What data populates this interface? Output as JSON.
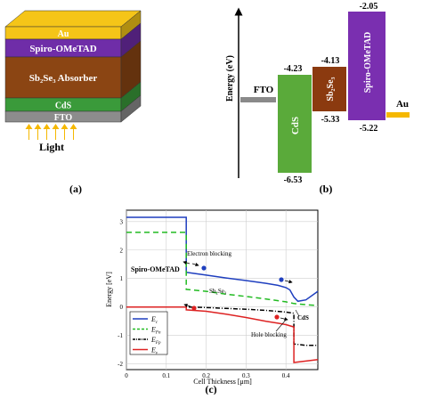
{
  "panel_a": {
    "caption": "(a)",
    "layers": [
      {
        "label": "Au",
        "color": "#f5c518"
      },
      {
        "label": "Spiro-OMeTAD",
        "color": "#6f2da8"
      },
      {
        "label": "Sb₂Se₃ Absorber",
        "color": "#8b4513"
      },
      {
        "label": "CdS",
        "color": "#3a9a3a"
      },
      {
        "label": "FTO",
        "color": "#8c8c8c"
      }
    ],
    "light_label": "Light",
    "arrow_color": "#f5b800"
  },
  "panel_b": {
    "caption": "(b)",
    "axis_label": "Energy (eV)",
    "blocks": [
      {
        "label": "FTO",
        "color": "#808080",
        "level": ""
      },
      {
        "label": "CdS",
        "color": "#5aaa3a",
        "top": "-4.23",
        "bottom": "-6.53"
      },
      {
        "label": "Sb₂Se₃",
        "color": "#8b3a0f",
        "top": "-4.13",
        "bottom": "-5.33"
      },
      {
        "label": "Spiro-OMeTAD",
        "color": "#7a2fb0",
        "top": "-2.05",
        "bottom": "-5.22"
      },
      {
        "label": "Au",
        "color": "#f5b800",
        "level": ""
      }
    ]
  },
  "panel_c": {
    "caption": "(c)",
    "chart_data": {
      "type": "line",
      "xlabel": "Cell Thickness [μm]",
      "ylabel": "Energy [eV]",
      "xlim": [
        0,
        0.48
      ],
      "ylim": [
        -2.2,
        3.4
      ],
      "xticks": [
        "0",
        "0.1",
        "0.2",
        "0.3",
        "0.4"
      ],
      "yticks": [
        "3",
        "2",
        "1",
        "0",
        "-1",
        "-2"
      ],
      "grid": true,
      "legend_position": "bottom-left",
      "series": [
        {
          "name": "E_c",
          "label_main": "E",
          "label_sub": "c",
          "color": "#1f3fbf",
          "dash": "none",
          "x": [
            0,
            0.15,
            0.15,
            0.17,
            0.2,
            0.25,
            0.3,
            0.35,
            0.38,
            0.4,
            0.41,
            0.42,
            0.43,
            0.45,
            0.48
          ],
          "y": [
            3.15,
            3.15,
            1.22,
            1.18,
            1.12,
            1.02,
            0.93,
            0.83,
            0.76,
            0.68,
            0.6,
            0.35,
            0.2,
            0.25,
            0.55
          ]
        },
        {
          "name": "E_Fn",
          "label_main": "E",
          "label_sub": "Fn",
          "color": "#22bb22",
          "dash": "6,4",
          "x": [
            0,
            0.15,
            0.15,
            0.2,
            0.25,
            0.3,
            0.35,
            0.4,
            0.42,
            0.45,
            0.48
          ],
          "y": [
            2.62,
            2.62,
            0.62,
            0.55,
            0.45,
            0.37,
            0.28,
            0.18,
            0.12,
            0.08,
            0.05
          ]
        },
        {
          "name": "E_Fp",
          "label_main": "E",
          "label_sub": "Fp",
          "color": "#000000",
          "dash": "5,2,1,2",
          "x": [
            0,
            0.15,
            0.15,
            0.2,
            0.25,
            0.3,
            0.35,
            0.4,
            0.42,
            0.42,
            0.45,
            0.48
          ],
          "y": [
            0.0,
            0.0,
            0.0,
            -0.02,
            -0.05,
            -0.08,
            -0.12,
            -0.18,
            -0.22,
            -1.3,
            -1.35,
            -1.35
          ]
        },
        {
          "name": "E_v",
          "label_main": "E",
          "label_sub": "v",
          "color": "#dd2222",
          "dash": "none",
          "x": [
            0,
            0.15,
            0.15,
            0.2,
            0.25,
            0.3,
            0.35,
            0.38,
            0.4,
            0.42,
            0.42,
            0.45,
            0.48
          ],
          "y": [
            0.0,
            0.0,
            -0.1,
            -0.15,
            -0.25,
            -0.37,
            -0.5,
            -0.57,
            -0.62,
            -0.7,
            -1.95,
            -1.9,
            -1.85
          ]
        }
      ],
      "annotations": [
        "Electron blocking",
        "Spiro-OMeTAD",
        "Sb₂Se₃",
        "CdS",
        "Hole blocking"
      ]
    }
  }
}
